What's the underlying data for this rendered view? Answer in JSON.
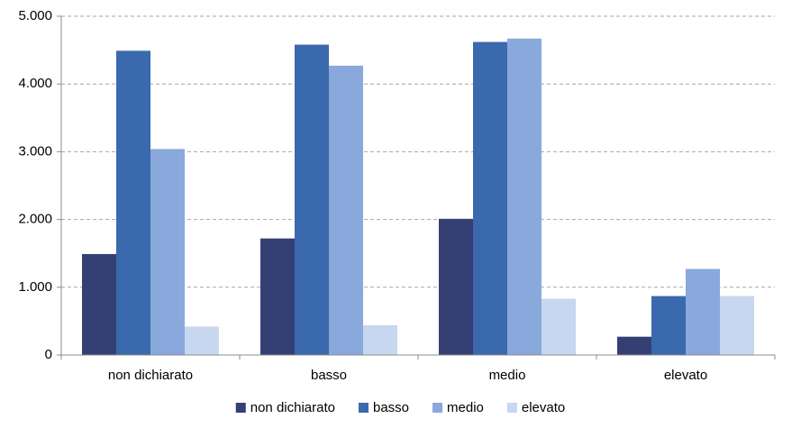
{
  "chart_data": {
    "type": "bar",
    "categories": [
      "non dichiarato",
      "basso",
      "medio",
      "elevato"
    ],
    "series": [
      {
        "name": "non dichiarato",
        "color": "#343f74",
        "values": [
          1490,
          1720,
          2010,
          270
        ]
      },
      {
        "name": "basso",
        "color": "#3a69ad",
        "values": [
          4490,
          4580,
          4620,
          870
        ]
      },
      {
        "name": "medio",
        "color": "#89a9dd",
        "values": [
          3040,
          4270,
          4670,
          1270
        ]
      },
      {
        "name": "elevato",
        "color": "#c6d7ef",
        "values": [
          420,
          440,
          830,
          870
        ]
      }
    ],
    "ylim": [
      0,
      5000
    ],
    "yticks": [
      0,
      {
        "value": 1000,
        "label": "1.000"
      },
      {
        "value": 2000,
        "label": "2.000"
      },
      {
        "value": 3000,
        "label": "3.000"
      },
      {
        "value": 4000,
        "label": "4.000"
      },
      {
        "value": 5000,
        "label": "5.000"
      }
    ],
    "grid": true,
    "legend": "bottom"
  }
}
